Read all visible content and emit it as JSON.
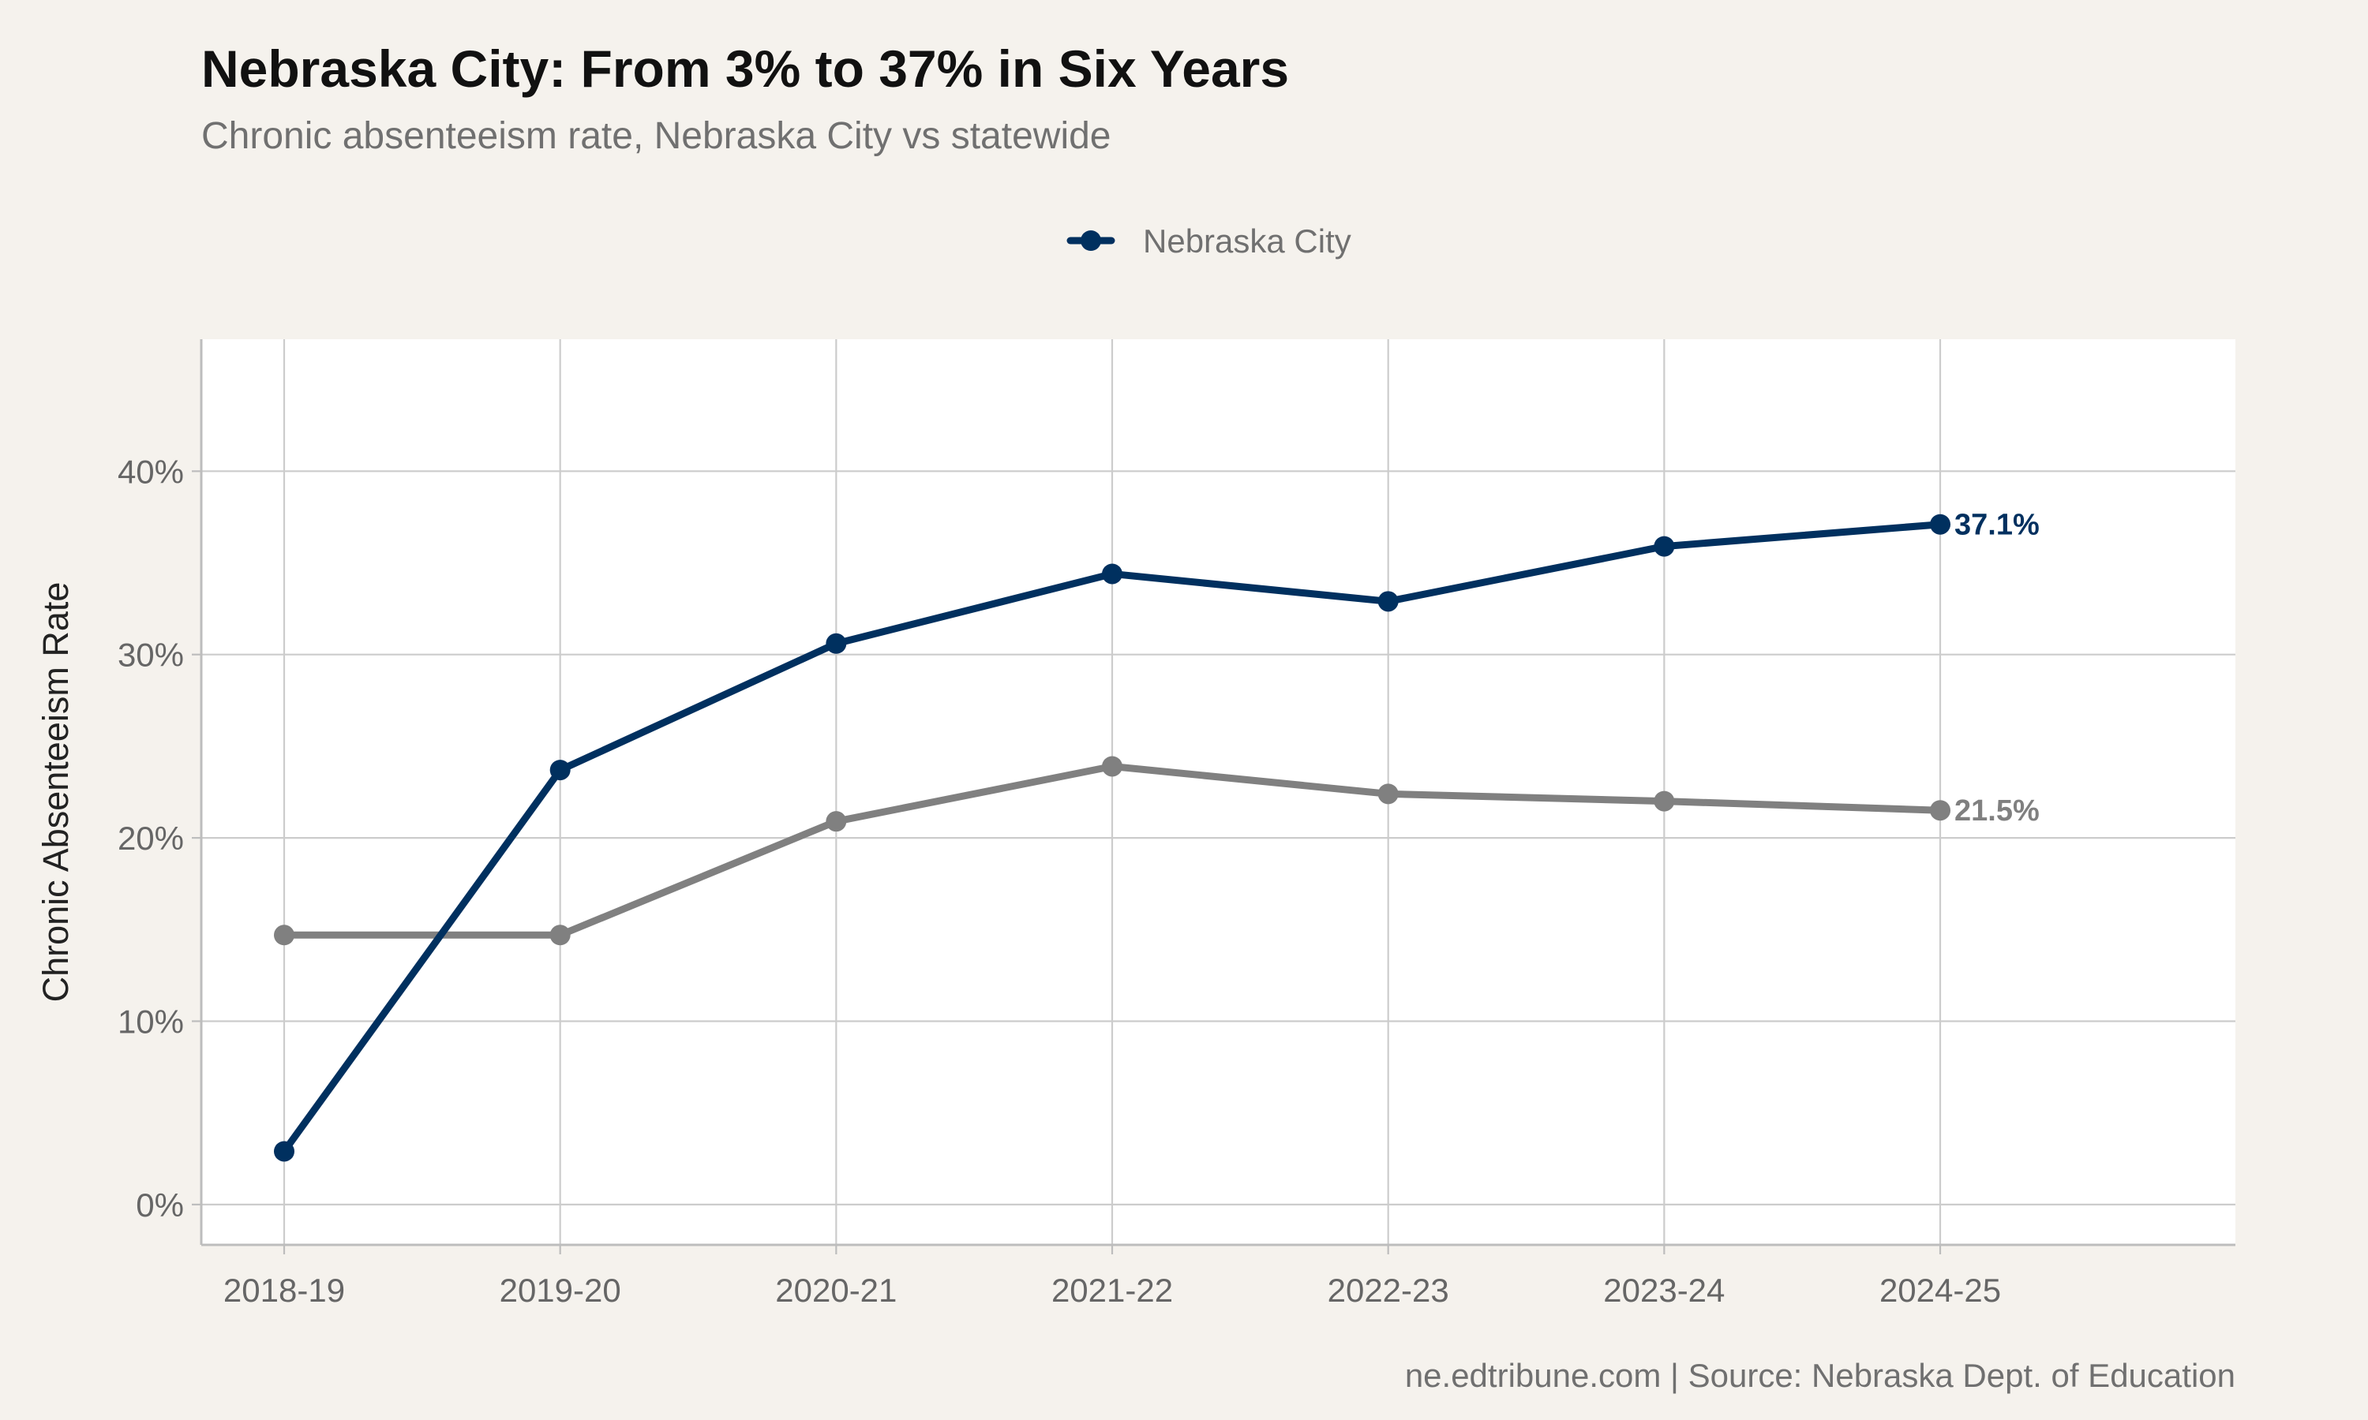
{
  "chart_data": {
    "type": "line",
    "title": "Nebraska City: From 3% to 37% in Six Years",
    "subtitle": "Chronic absenteeism rate, Nebraska City vs statewide",
    "ylabel": "Chronic Absenteeism Rate",
    "xlabel": "",
    "categories": [
      "2018-19",
      "2019-20",
      "2020-21",
      "2021-22",
      "2022-23",
      "2023-24",
      "2024-25"
    ],
    "yticks": [
      0,
      10,
      20,
      30,
      40
    ],
    "ytick_labels": [
      "0%",
      "10%",
      "20%",
      "30%",
      "40%"
    ],
    "ylim": [
      -2.2,
      47.2
    ],
    "grid": true,
    "legend_position": "top-center",
    "series": [
      {
        "name": "",
        "key": "statewide",
        "color": "#808080",
        "values": [
          14.7,
          14.7,
          20.9,
          23.9,
          22.4,
          22.0,
          21.5
        ],
        "end_label": "21.5%"
      },
      {
        "name": "Nebraska City",
        "key": "nebraska-city",
        "color": "#00305f",
        "values": [
          2.9,
          23.7,
          30.6,
          34.4,
          32.9,
          35.9,
          37.1
        ],
        "end_label": "37.1%"
      }
    ],
    "caption": "ne.edtribune.com | Source: Nebraska Dept. of Education"
  }
}
